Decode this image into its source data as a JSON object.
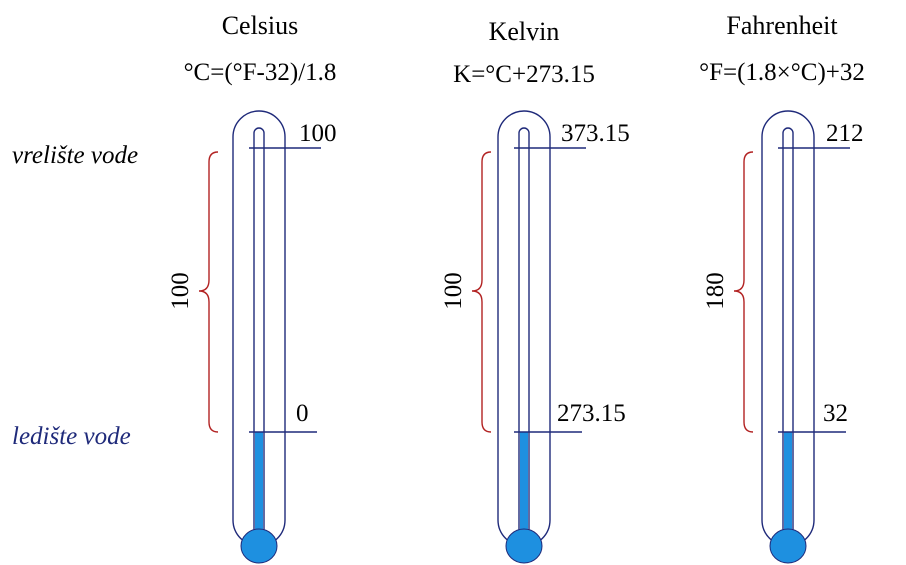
{
  "labels": {
    "boiling": "vrelište vode",
    "freezing": "ledište vode"
  },
  "colors": {
    "outline": "#1f2a7a",
    "liquid": "#1e90e0",
    "brace": "#b22222",
    "boiling_text": "#000000",
    "freezing_text": "#1f2a7a"
  },
  "scales": [
    {
      "title": "Celsius",
      "formula": "°C=(°F-32)/1.8",
      "boiling": "100",
      "freezing": "0",
      "span": "100"
    },
    {
      "title": "Kelvin",
      "formula": "K=°C+273.15",
      "boiling": "373.15",
      "freezing": "273.15",
      "span": "100"
    },
    {
      "title": "Fahrenheit",
      "formula": "°F=(1.8×°C)+32",
      "boiling": "212",
      "freezing": "32",
      "span": "180"
    }
  ]
}
